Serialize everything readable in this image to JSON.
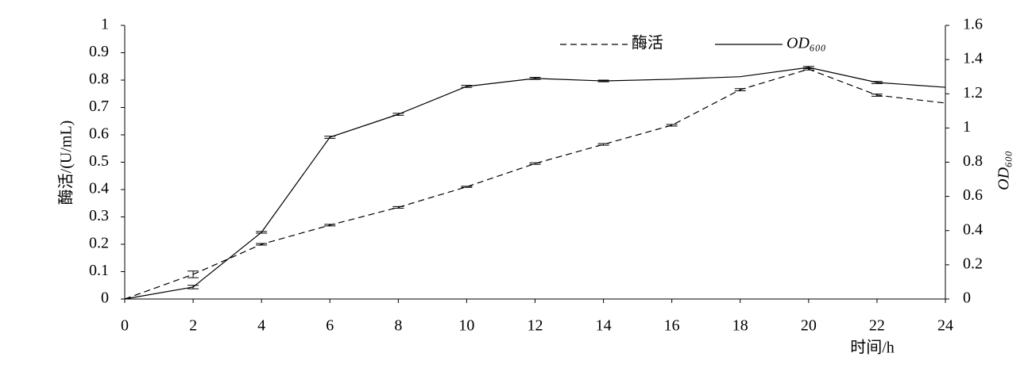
{
  "chart_data": {
    "type": "line",
    "x_label": "时间/h",
    "y_label": "酶活/(U/mL)",
    "y2_label": "OD₆₀₀",
    "x": [
      0,
      2,
      4,
      6,
      8,
      10,
      12,
      14,
      16,
      18,
      20,
      22,
      24
    ],
    "xlim": [
      0,
      24
    ],
    "xticks": [
      0,
      2,
      4,
      6,
      8,
      10,
      12,
      14,
      16,
      18,
      20,
      22,
      24
    ],
    "ylim": [
      0,
      1
    ],
    "yticks": [
      0,
      0.1,
      0.2,
      0.3,
      0.4,
      0.5,
      0.6,
      0.7,
      0.8,
      0.9,
      1
    ],
    "y2lim": [
      0,
      1.6
    ],
    "y2ticks": [
      0,
      0.2,
      0.4,
      0.6,
      0.8,
      1,
      1.2,
      1.4,
      1.6
    ],
    "series": [
      {
        "name": "酶活",
        "color": "#000000",
        "dash": true,
        "values": [
          0,
          0.09,
          0.2,
          0.27,
          0.335,
          0.41,
          0.495,
          0.565,
          0.635,
          0.765,
          0.84,
          0.745,
          0.716
        ],
        "errors": [
          0,
          0.012,
          0.003,
          0.003,
          0.003,
          0.002,
          0.003,
          0.003,
          0.003,
          0.004,
          0.003,
          0.004,
          0
        ]
      },
      {
        "name": "OD₆₀₀",
        "color": "#000000",
        "dash": false,
        "axis": "y2",
        "values": [
          0,
          0.07,
          0.39,
          0.946,
          1.08,
          1.243,
          1.29,
          1.275,
          1.285,
          1.3,
          1.354,
          1.266,
          1.238
        ],
        "errors": [
          0,
          0.01,
          0.005,
          0.006,
          0.006,
          0.006,
          0.006,
          0.005,
          0,
          0,
          0.006,
          0.006,
          0
        ]
      }
    ]
  }
}
